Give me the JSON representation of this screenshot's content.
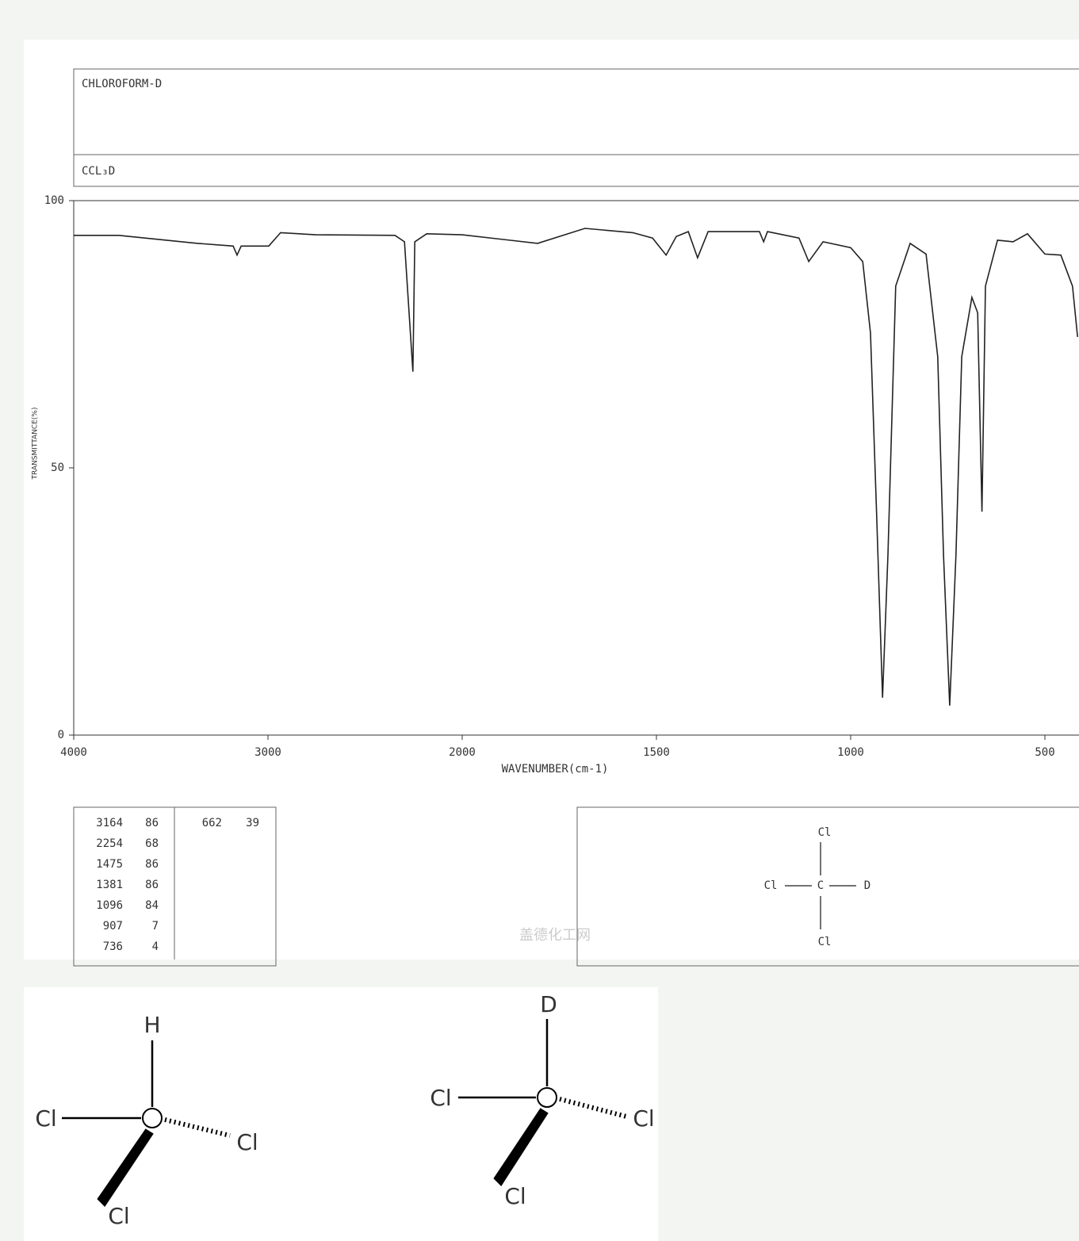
{
  "header": {
    "name": "CHLOROFORM-D",
    "formula": "CCL₃D"
  },
  "chart_data": {
    "type": "line",
    "xlabel": "WAVENUMBER(cm-1)",
    "ylabel": "TRANSMITTANCE(%)",
    "x": [
      4000,
      3768,
      3362,
      3179,
      3159,
      3138,
      2996,
      2935,
      2752,
      2346,
      2297,
      2254,
      2244,
      2183,
      2000,
      1806,
      1684,
      1561,
      1510,
      1475,
      1449,
      1418,
      1394,
      1367,
      1235,
      1224,
      1214,
      1133,
      1108,
      1071,
      1000,
      969,
      949,
      933,
      918,
      904,
      884,
      847,
      806,
      776,
      761,
      745,
      729,
      714,
      688,
      673,
      662,
      653,
      622,
      582,
      545,
      500,
      459,
      429,
      416
    ],
    "values": [
      93.5,
      93.5,
      92,
      91.5,
      89.8,
      91.5,
      91.5,
      94,
      93.6,
      93.5,
      92.3,
      68,
      92.3,
      93.8,
      93.6,
      92,
      94.8,
      94,
      93,
      89.8,
      93.3,
      94.2,
      89.3,
      94.2,
      94.2,
      92.3,
      94.2,
      93,
      88.6,
      92.3,
      91.2,
      88.6,
      75.2,
      41,
      7,
      33.7,
      84,
      92,
      90,
      70.8,
      33.7,
      5.5,
      33.7,
      70.8,
      81.9,
      79,
      41.8,
      84,
      92.6,
      92.3,
      93.8,
      90,
      89.8,
      84,
      74.5
    ],
    "color": "#222222",
    "xlim": [
      4000,
      400
    ],
    "xticks": [
      4000,
      3000,
      2000,
      1500,
      1000,
      500
    ],
    "ylim": [
      0,
      100
    ],
    "yticks": [
      0,
      50,
      100
    ]
  },
  "peak_table": {
    "columns": [
      [
        [
          "3164",
          "86"
        ],
        [
          "2254",
          "68"
        ],
        [
          "1475",
          "86"
        ],
        [
          "1381",
          "86"
        ],
        [
          "1096",
          "84"
        ],
        [
          "907",
          "7"
        ],
        [
          "736",
          "4"
        ]
      ],
      [
        [
          "662",
          "39"
        ]
      ]
    ]
  },
  "watermark": "盖德化工网",
  "structure": {
    "top": "Cl",
    "left": "Cl",
    "center": "C",
    "right": "D",
    "bottom": "Cl"
  },
  "chcl3": {
    "top": "H",
    "left": "Cl",
    "right": "Cl",
    "bottom": "Cl"
  },
  "cdcl3": {
    "top": "D",
    "left": "Cl",
    "right": "Cl",
    "bottom": "Cl"
  }
}
